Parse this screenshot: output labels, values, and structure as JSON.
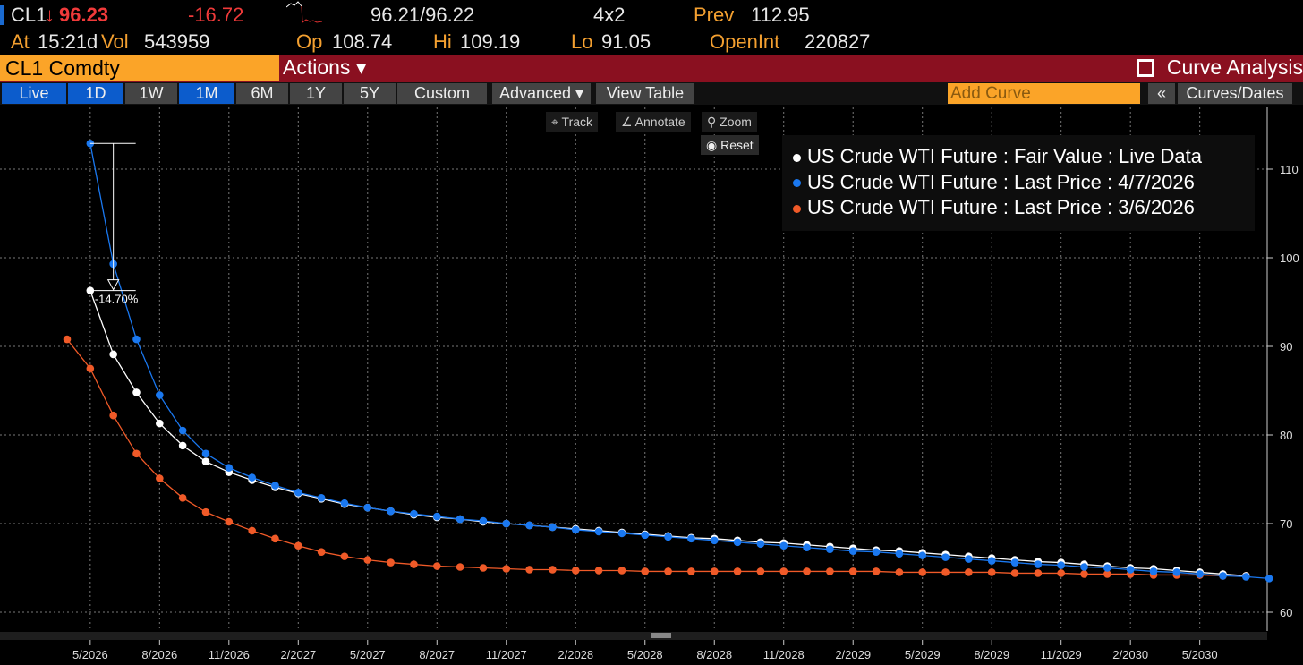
{
  "quote": {
    "ticker": "CL1",
    "arrow": "↓",
    "last": "96.23",
    "change": "-16.72",
    "bidask": "96.21/96.22",
    "size": "4x2",
    "prev_label": "Prev",
    "prev": "112.95",
    "at_label": "At",
    "time": "15:21d",
    "vol_label": "Vol",
    "vol": "543959",
    "op_label": "Op",
    "op": "108.74",
    "hi_label": "Hi",
    "hi": "109.19",
    "lo_label": "Lo",
    "lo": "91.05",
    "oi_label": "OpenInt",
    "oi": "220827"
  },
  "header": {
    "security": "CL1 Comdty",
    "actions": "Actions ▾",
    "title": "Curve Analysis"
  },
  "toolbar": {
    "buttons": [
      "Live",
      "1D",
      "1W",
      "1M",
      "6M",
      "1Y",
      "5Y",
      "Custom"
    ],
    "advanced": "Advanced ▾",
    "view_table": "View Table",
    "add_curve_placeholder": "Add Curve",
    "collapse": "«",
    "curves_dates": "Curves/Dates"
  },
  "chart_tools": {
    "track": "Track",
    "annotate": "Annotate",
    "zoom": "Zoom",
    "reset": "Reset"
  },
  "annotation": {
    "text": "-14.70%"
  },
  "colors": {
    "white": "#ffffff",
    "blue": "#1a78f0",
    "orange": "#f05a28"
  },
  "chart_data": {
    "type": "line",
    "x_start": "4/2026",
    "x_unit": "month",
    "xticks": [
      "5/2026",
      "8/2026",
      "11/2026",
      "2/2027",
      "5/2027",
      "8/2027",
      "11/2027",
      "2/2028",
      "5/2028",
      "8/2028",
      "11/2028",
      "2/2029",
      "5/2029",
      "8/2029",
      "11/2029",
      "2/2030",
      "5/2030"
    ],
    "yticks": [
      "60",
      "70",
      "80",
      "90",
      "100",
      "110"
    ],
    "ylim": [
      58,
      113
    ],
    "legend": [
      "US Crude WTI Future : Fair Value : Live Data",
      "US Crude WTI Future : Last Price : 4/7/2026",
      "US Crude WTI Future : Last Price : 3/6/2026"
    ],
    "series": [
      {
        "name": "Fair Value Live",
        "start": 1,
        "values": [
          96.3,
          89.1,
          84.8,
          81.3,
          78.8,
          77.0,
          75.8,
          74.9,
          74.1,
          73.4,
          72.8,
          72.2,
          71.8,
          71.4,
          71.0,
          70.7,
          70.5,
          70.2,
          70.0,
          69.8,
          69.6,
          69.4,
          69.2,
          69.0,
          68.8,
          68.6,
          68.4,
          68.3,
          68.1,
          67.9,
          67.8,
          67.6,
          67.4,
          67.2,
          67.0,
          66.9,
          66.7,
          66.5,
          66.3,
          66.1,
          65.9,
          65.7,
          65.6,
          65.4,
          65.2,
          65.0,
          64.9,
          64.7,
          64.5,
          64.3,
          64.1
        ]
      },
      {
        "name": "Last Price 4/7/2026",
        "start": 1,
        "values": [
          112.9,
          99.3,
          90.8,
          84.5,
          80.5,
          77.9,
          76.3,
          75.2,
          74.3,
          73.5,
          72.9,
          72.3,
          71.8,
          71.4,
          71.1,
          70.8,
          70.5,
          70.3,
          70.0,
          69.8,
          69.6,
          69.3,
          69.1,
          68.9,
          68.7,
          68.5,
          68.3,
          68.1,
          67.9,
          67.7,
          67.5,
          67.3,
          67.1,
          66.9,
          66.8,
          66.6,
          66.4,
          66.2,
          66.0,
          65.8,
          65.6,
          65.4,
          65.3,
          65.1,
          65.0,
          64.8,
          64.6,
          64.5,
          64.3,
          64.1,
          64.0,
          63.8
        ]
      },
      {
        "name": "Last Price 3/6/2026",
        "start": 0,
        "values": [
          90.8,
          87.5,
          82.2,
          77.9,
          75.1,
          72.9,
          71.3,
          70.2,
          69.2,
          68.3,
          67.5,
          66.8,
          66.3,
          65.9,
          65.6,
          65.4,
          65.2,
          65.1,
          65.0,
          64.9,
          64.8,
          64.8,
          64.7,
          64.7,
          64.7,
          64.6,
          64.6,
          64.6,
          64.6,
          64.6,
          64.6,
          64.6,
          64.6,
          64.6,
          64.6,
          64.6,
          64.5,
          64.5,
          64.5,
          64.5,
          64.5,
          64.4,
          64.4,
          64.4,
          64.3,
          64.3,
          64.3,
          64.2,
          64.2,
          64.2,
          64.1,
          64.1
        ]
      }
    ]
  }
}
